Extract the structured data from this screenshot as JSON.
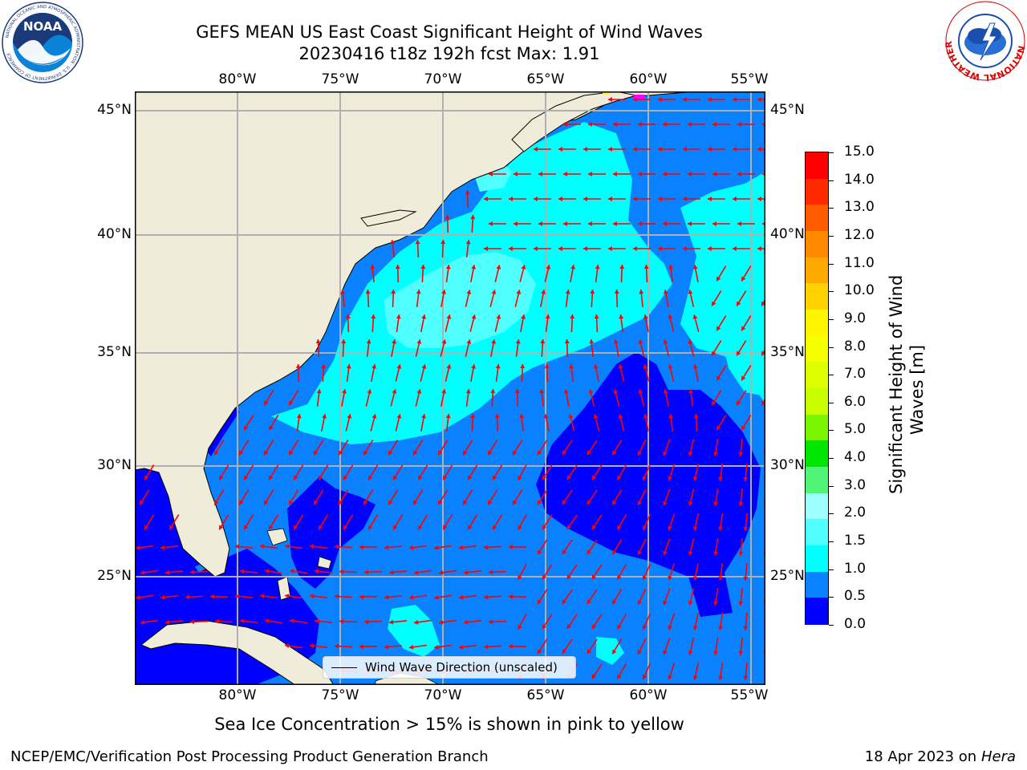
{
  "header": {
    "title_line1": "GEFS MEAN US East Coast Significant Height of Wind Waves",
    "title_line2": "20230416 t18z 192h fcst   Max: 1.91"
  },
  "logos": {
    "left": {
      "name": "noaa-logo",
      "text": "NOAA",
      "ring_text": "NATIONAL OCEANIC AND ATMOSPHERIC ADMINISTRATION · U.S. DEPARTMENT OF COMMERCE"
    },
    "right": {
      "name": "nws-logo",
      "ring_text": "NATIONAL WEATHER SERVICE"
    }
  },
  "map": {
    "lon_ticks": [
      "80°W",
      "75°W",
      "70°W",
      "65°W",
      "60°W",
      "55°W"
    ],
    "lat_ticks": [
      "45°N",
      "40°N",
      "35°N",
      "30°N",
      "25°N"
    ],
    "legend_label": "Wind Wave Direction (unscaled)",
    "colors": {
      "land": "#efedd9",
      "band_0_0p5": "#0000ff",
      "band_0p5_1": "#0a82ff",
      "band_1_1p5": "#00ffff",
      "band_1p5_2": "#50ffff",
      "ice": "#ff00ff",
      "arrow": "#ff0000"
    }
  },
  "colorbar": {
    "label_line1": "Significant Height of Wind",
    "label_line2": "Waves [m]",
    "ticks": [
      "15.0",
      "14.0",
      "13.0",
      "12.0",
      "11.0",
      "10.0",
      "9.0",
      "8.0",
      "7.0",
      "6.0",
      "5.0",
      "4.0",
      "3.0",
      "2.0",
      "1.5",
      "1.0",
      "0.5",
      "0.0"
    ],
    "colors_top_to_bottom": [
      "#ff0000",
      "#ff2a00",
      "#ff5a00",
      "#ff8a00",
      "#ffaa00",
      "#ffd200",
      "#fff500",
      "#f5ff00",
      "#deff00",
      "#c8ff00",
      "#78f500",
      "#00e600",
      "#50f578",
      "#a0ffff",
      "#50ffff",
      "#00ffff",
      "#0a82ff",
      "#0000ff"
    ]
  },
  "footer": {
    "note": "Sea Ice Concentration > 15% is shown in pink to yellow",
    "producer": "NCEP/EMC/Verification Post Processing Product Generation Branch",
    "date_prefix": "18 Apr 2023 on ",
    "machine": "Hera"
  }
}
